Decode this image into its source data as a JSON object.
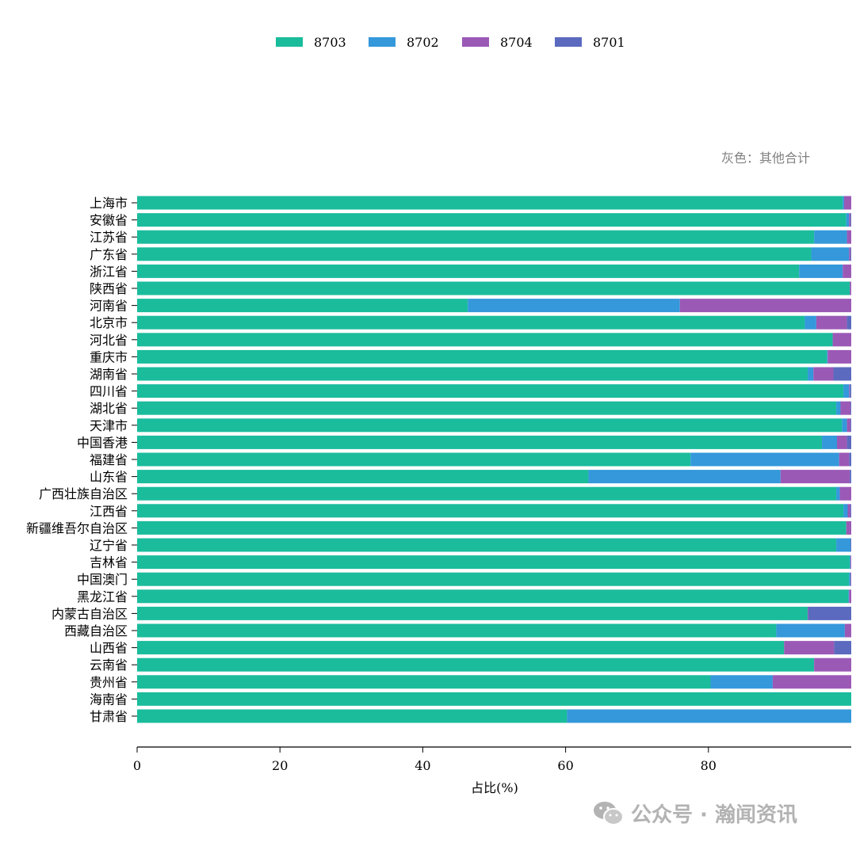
{
  "chart_data": {
    "type": "bar",
    "orientation": "horizontal",
    "stacked": true,
    "xlabel": "占比(%)",
    "ylabel": "",
    "xlim": [
      0,
      100
    ],
    "xticks": [
      0,
      20,
      40,
      60,
      80
    ],
    "annotation": "灰色：其他合计",
    "legend_position": "top-center",
    "categories": [
      "上海市",
      "安徽省",
      "江苏省",
      "广东省",
      "浙江省",
      "陕西省",
      "河南省",
      "北京市",
      "河北省",
      "重庆市",
      "湖南省",
      "四川省",
      "湖北省",
      "天津市",
      "中国香港",
      "福建省",
      "山东省",
      "广西壮族自治区",
      "江西省",
      "新疆维吾尔自治区",
      "辽宁省",
      "吉林省",
      "中国澳门",
      "黑龙江省",
      "内蒙古自治区",
      "西藏自治区",
      "山西省",
      "云南省",
      "贵州省",
      "海南省",
      "甘肃省"
    ],
    "series": [
      {
        "name": "8703",
        "color": "#1abc9c",
        "values": [
          98.8,
          99.3,
          94.8,
          94.4,
          92.7,
          99.8,
          46.3,
          93.5,
          97.4,
          96.6,
          93.9,
          98.9,
          97.9,
          98.7,
          95.9,
          77.5,
          63.2,
          97.9,
          98.9,
          99.3,
          97.9,
          99.8,
          99.7,
          99.6,
          93.9,
          89.5,
          90.6,
          94.8,
          80.3,
          100.0,
          60.2
        ]
      },
      {
        "name": "8702",
        "color": "#3498db",
        "values": [
          0.2,
          0.4,
          4.6,
          5.3,
          6.1,
          0,
          29.7,
          1.6,
          0,
          0.1,
          0.8,
          0.8,
          0.6,
          0.7,
          2.1,
          20.8,
          26.9,
          0.5,
          0.6,
          0,
          2.0,
          0.1,
          0.2,
          0.1,
          0,
          9.6,
          0,
          0,
          8.7,
          0,
          39.8
        ]
      },
      {
        "name": "8704",
        "color": "#9b59b6",
        "values": [
          1.0,
          0.2,
          0.6,
          0.2,
          1.2,
          0.2,
          24.0,
          4.3,
          2.6,
          3.3,
          2.8,
          0.1,
          1.4,
          0.5,
          1.4,
          1.4,
          9.7,
          1.6,
          0.4,
          0.7,
          0,
          0.1,
          0.1,
          0.3,
          0.1,
          0.9,
          7.0,
          5.2,
          11.0,
          0,
          0
        ]
      },
      {
        "name": "8701",
        "color": "#5b6abf",
        "values": [
          0,
          0.1,
          0,
          0.1,
          0,
          0,
          0,
          0.6,
          0,
          0,
          2.5,
          0.2,
          0.1,
          0.1,
          0.6,
          0.3,
          0.2,
          0,
          0.1,
          0,
          0.1,
          0,
          0,
          0,
          6.0,
          0,
          2.4,
          0,
          0,
          0,
          0
        ]
      }
    ]
  },
  "watermark": {
    "text": "公众号 · 瀚闻资讯",
    "icon": "wechat-icon"
  }
}
